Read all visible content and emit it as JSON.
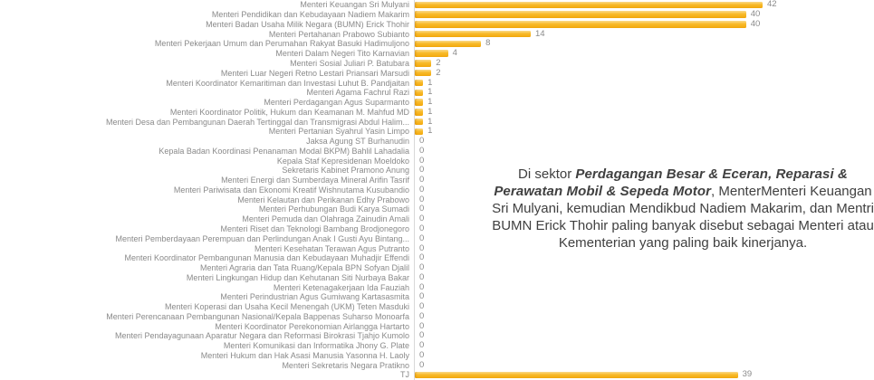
{
  "chart_data": {
    "type": "bar",
    "orientation": "horizontal",
    "title": "",
    "xlabel": "",
    "ylabel": "",
    "xlim": [
      0,
      46
    ],
    "grid": false,
    "legend": false,
    "bar_color": "#F6AE10",
    "bar_color_light": "#FCDF92",
    "label_color": "#8A8A8A",
    "axis_line_color": "#D9D9D9",
    "categories": [
      "Menteri Keuangan Sri Mulyani",
      "Menteri Pendidikan dan Kebudayaan Nadiem Makarim",
      "Menteri Badan Usaha Milik Negara (BUMN) Erick Thohir",
      "Menteri Pertahanan Prabowo Subianto",
      "Menteri Pekerjaan Umum dan Perumahan Rakyat Basuki Hadimuljono",
      "Menteri Dalam Negeri Tito Karnavian",
      "Menteri Sosial Juliari P. Batubara",
      "Menteri Luar Negeri Retno Lestari Priansari Marsudi",
      "Menteri Koordinator Kemaritiman dan Investasi Luhut B. Pandjaitan",
      "Menteri Agama Fachrul Razi",
      "Menteri Perdagangan Agus Suparmanto",
      "Menteri Koordinator Politik, Hukum dan Keamanan M. Mahfud MD",
      "Menteri Desa dan Pembangunan Daerah Tertinggal dan Transmigrasi Abdul Halim...",
      "Menteri Pertanian Syahrul Yasin Limpo",
      "Jaksa Agung ST Burhanudin",
      "Kepala Badan Koordinasi Penanaman Modal BKPM) Bahlil Lahadalia",
      "Kepala Staf Kepresidenan Moeldoko",
      "Sekretaris Kabinet Pramono Anung",
      "Menteri Energi dan Sumberdaya Mineral Arifin Tasrif",
      "Menteri Pariwisata dan Ekonomi Kreatif Wishnutama Kusubandio",
      "Menteri Kelautan dan Perikanan Edhy Prabowo",
      "Menteri Perhubungan Budi Karya Sumadi",
      "Menteri Pemuda dan Olahraga Zainudin Amali",
      "Menteri Riset dan Teknologi Bambang Brodjonegoro",
      "Menteri Pemberdayaan Perempuan dan Perlindungan Anak I Gusti Ayu Bintang...",
      "Menteri Kesehatan Terawan Agus Putranto",
      "Menteri Koordinator Pembangunan Manusia dan Kebudayaan Muhadjir Effendi",
      "Menteri Agraria dan Tata Ruang/Kepala BPN Sofyan Djalil",
      "Menteri Lingkungan Hidup dan Kehutanan Siti Nurbaya Bakar",
      "Menteri Ketenagakerjaan Ida Fauziah",
      "Menteri Perindustrian Agus Gumiwang Kartasasmita",
      "Menteri Koperasi dan Usaha Kecil Menengah (UKM) Teten Masduki",
      "Menteri Perencanaan Pembangunan Nasional/Kepala Bappenas Suharso Monoarfa",
      "Menteri Koordinator Perekonomian Airlangga Hartarto",
      "Menteri Pendayagunaan Aparatur Negara dan Reformasi Birokrasi Tjahjo Kumolo",
      "Menteri Komunikasi dan Informatika Jhony G. Plate",
      "Menteri Hukum dan Hak Asasi Manusia Yasonna H. Laoly",
      "Menteri Sekretaris Negara Pratikno",
      "TJ"
    ],
    "values": [
      42,
      40,
      40,
      14,
      8,
      4,
      2,
      2,
      1,
      1,
      1,
      1,
      1,
      1,
      0,
      0,
      0,
      0,
      0,
      0,
      0,
      0,
      0,
      0,
      0,
      0,
      0,
      0,
      0,
      0,
      0,
      0,
      0,
      0,
      0,
      0,
      0,
      0,
      39
    ]
  },
  "annotation": {
    "prefix": "Di sektor ",
    "highlight": "Perdagangan Besar & Eceran, Reparasi & Perawatan Mobil & Sepeda Motor",
    "rest": ", MenterMenteri Keuangan Sri Mulyani, kemudian Mendikbud Nadiem Makarim, dan Mentri BUMN Erick Thohir paling banyak disebut sebagai Menteri atau Kementerian yang paling baik kinerjanya.",
    "text_color": "#404040"
  }
}
